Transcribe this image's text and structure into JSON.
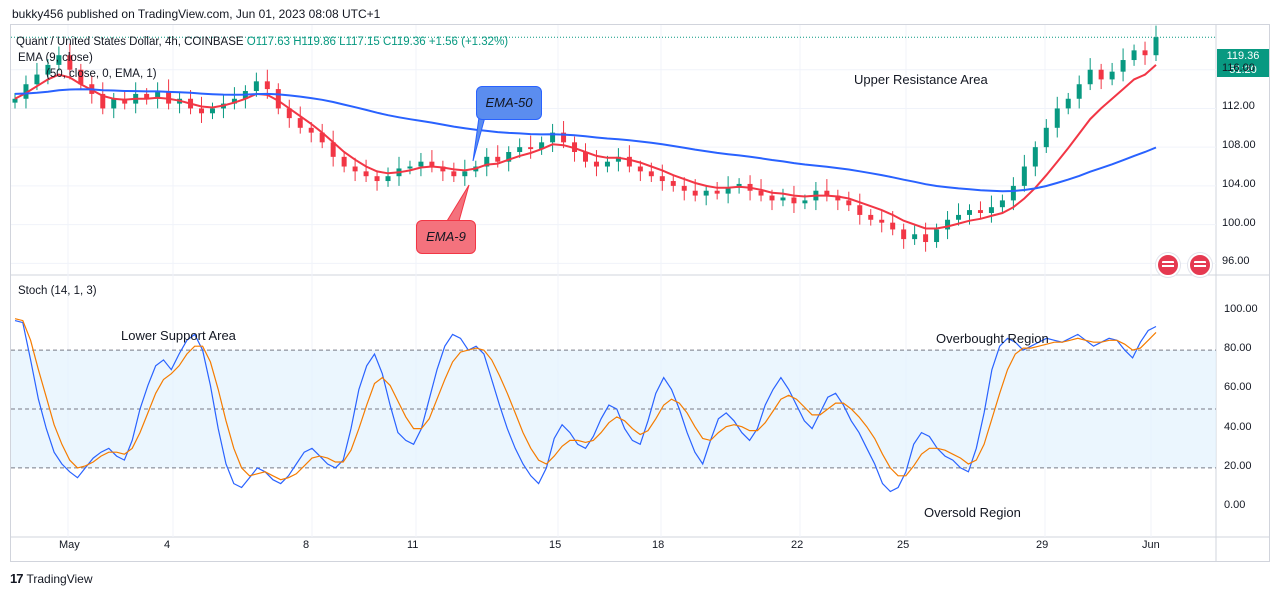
{
  "publisher": "bukky456 published on TradingView.com, Jun 01, 2023 08:08 UTC+1",
  "symbol": "Quant / United States Dollar, 4h, COINBASE",
  "ohlc": {
    "o": "O117.63",
    "h": "H119.86",
    "l": "L117.15",
    "c": "C119.36",
    "chg": "+1.56 (+1.32%)"
  },
  "ind1": "EMA (9, close)",
  "ind2": "(50, close, 0, EMA, 1)",
  "stoch_label": "Stoch (14, 1, 3)",
  "price_badge": "119.36",
  "time_badge": "51:20",
  "callouts": {
    "ema50": "EMA-50",
    "ema9": "EMA-9"
  },
  "annotations": {
    "upper": "Upper Resistance Area",
    "lower": "Lower Support Area",
    "overbought": "Overbought Region",
    "oversold": "Oversold Region"
  },
  "logo_text": "TradingView",
  "colors": {
    "up": "#089981",
    "down": "#f23645",
    "ema9": "#f23645",
    "ema50": "#2962ff",
    "stoch_k": "#2962ff",
    "stoch_d": "#f57c00",
    "band": "#e3f2fd"
  },
  "chart_data": [
    {
      "type": "candlestick",
      "price_axis": {
        "ticks": [
          "116.00",
          "112.00",
          "108.00",
          "104.00",
          "100.00",
          "96.00"
        ],
        "ylim": [
          95,
          120
        ]
      },
      "time_axis": [
        "May",
        "4",
        "8",
        "11",
        "15",
        "18",
        "22",
        "25",
        "29",
        "Jun"
      ],
      "close": [
        113,
        114.5,
        115.5,
        116.5,
        117.5,
        116,
        114.5,
        113.5,
        112,
        113,
        112.5,
        113.5,
        113,
        113.8,
        112.5,
        113,
        112,
        111.5,
        112,
        112.5,
        113,
        113.8,
        114.8,
        114,
        112,
        111,
        110,
        109.5,
        108.5,
        107,
        106,
        105.5,
        105,
        104.5,
        105,
        105.8,
        106,
        106.5,
        106,
        105.5,
        105,
        105.5,
        106,
        107,
        106.5,
        107.5,
        108,
        107.8,
        108.5,
        109.5,
        108.5,
        107.5,
        106.5,
        106,
        106.5,
        107,
        106,
        105.5,
        105,
        104.5,
        104,
        103.5,
        103,
        103.5,
        103.2,
        103.8,
        104.2,
        103.5,
        103,
        102.5,
        102.8,
        102.2,
        102.5,
        103.5,
        103,
        102.5,
        102,
        101,
        100.5,
        100.2,
        99.5,
        98.5,
        99,
        98.2,
        99.5,
        100.5,
        101,
        101.5,
        101.2,
        101.8,
        102.5,
        104,
        106,
        108,
        110,
        112,
        113,
        114.5,
        116,
        115,
        115.8,
        117,
        118,
        117.5,
        119.36
      ],
      "ema9": [
        113,
        113.6,
        114.3,
        115,
        115.5,
        115.2,
        114.5,
        113.9,
        113.3,
        113,
        112.9,
        113,
        113,
        113.1,
        113,
        112.8,
        112.5,
        112.2,
        112.1,
        112.3,
        112.6,
        113,
        113.5,
        113.4,
        112.8,
        112,
        111.2,
        110.4,
        109.5,
        108.5,
        107.5,
        106.7,
        106,
        105.5,
        105.3,
        105.4,
        105.6,
        105.9,
        106,
        105.9,
        105.7,
        105.6,
        105.8,
        106.2,
        106.3,
        106.7,
        107.1,
        107.4,
        107.8,
        108.3,
        108.2,
        107.9,
        107.5,
        107.1,
        106.9,
        106.9,
        106.7,
        106.4,
        106,
        105.6,
        105.1,
        104.7,
        104.3,
        104,
        103.8,
        103.8,
        103.9,
        103.8,
        103.6,
        103.3,
        103.2,
        103,
        102.9,
        103,
        103,
        102.9,
        102.7,
        102.3,
        101.9,
        101.5,
        101,
        100.4,
        100,
        99.6,
        99.6,
        99.8,
        100.1,
        100.4,
        100.6,
        100.9,
        101.2,
        101.8,
        102.7,
        103.8,
        105.1,
        106.5,
        107.9,
        109.4,
        110.9,
        112,
        113,
        114,
        115,
        115.5,
        116.5
      ]
    },
    {
      "type": "line",
      "title": "Stoch (14, 1, 3)",
      "y_ticks": [
        "100.00",
        "80.00",
        "60.00",
        "40.00",
        "20.00",
        "0.00"
      ],
      "ylim": [
        -5,
        105
      ],
      "series": [
        {
          "values": [
            95,
            94,
            75,
            55,
            40,
            28,
            22,
            18,
            15,
            20,
            25,
            28,
            30,
            26,
            24,
            34,
            50,
            62,
            72,
            75,
            70,
            78,
            85,
            88,
            80,
            62,
            40,
            22,
            12,
            10,
            15,
            20,
            18,
            14,
            12,
            16,
            22,
            28,
            30,
            26,
            22,
            20,
            24,
            40,
            60,
            72,
            78,
            68,
            52,
            38,
            34,
            32,
            40,
            55,
            70,
            82,
            88,
            86,
            80,
            82,
            78,
            65,
            52,
            40,
            30,
            22,
            16,
            12,
            20,
            35,
            42,
            38,
            32,
            30,
            36,
            45,
            52,
            50,
            40,
            34,
            32,
            44,
            58,
            66,
            60,
            50,
            38,
            28,
            22,
            34,
            45,
            48,
            44,
            38,
            34,
            40,
            52,
            60,
            66,
            60,
            52,
            44,
            40,
            48,
            56,
            58,
            52,
            44,
            38,
            30,
            22,
            12,
            8,
            10,
            18,
            32,
            38,
            36,
            30,
            26,
            24,
            20,
            18,
            30,
            48,
            70,
            82,
            86,
            84,
            80,
            82,
            84,
            86,
            85,
            84,
            86,
            88,
            85,
            82,
            84,
            86,
            85,
            80,
            76,
            84,
            90,
            92
          ]
        },
        {
          "values": [
            96,
            95,
            85,
            70,
            56,
            42,
            32,
            24,
            20,
            21,
            23,
            26,
            28,
            28,
            27,
            30,
            38,
            48,
            58,
            65,
            68,
            72,
            78,
            82,
            82,
            74,
            60,
            44,
            30,
            20,
            16,
            17,
            18,
            16,
            14,
            15,
            17,
            21,
            25,
            26,
            25,
            23,
            23,
            29,
            40,
            52,
            63,
            66,
            62,
            54,
            46,
            40,
            40,
            45,
            55,
            65,
            74,
            79,
            80,
            81,
            80,
            75,
            67,
            58,
            48,
            38,
            30,
            24,
            22,
            26,
            31,
            34,
            34,
            33,
            34,
            38,
            43,
            46,
            44,
            40,
            37,
            39,
            45,
            52,
            55,
            53,
            48,
            41,
            35,
            34,
            38,
            41,
            42,
            41,
            39,
            39,
            43,
            49,
            55,
            57,
            55,
            51,
            47,
            47,
            50,
            53,
            53,
            50,
            46,
            41,
            35,
            27,
            20,
            16,
            16,
            21,
            27,
            30,
            30,
            29,
            27,
            25,
            22,
            24,
            32,
            45,
            58,
            70,
            78,
            81,
            81,
            82,
            83,
            84,
            84,
            85,
            86,
            85,
            84,
            84,
            85,
            85,
            83,
            80,
            81,
            85,
            89
          ]
        }
      ]
    }
  ]
}
